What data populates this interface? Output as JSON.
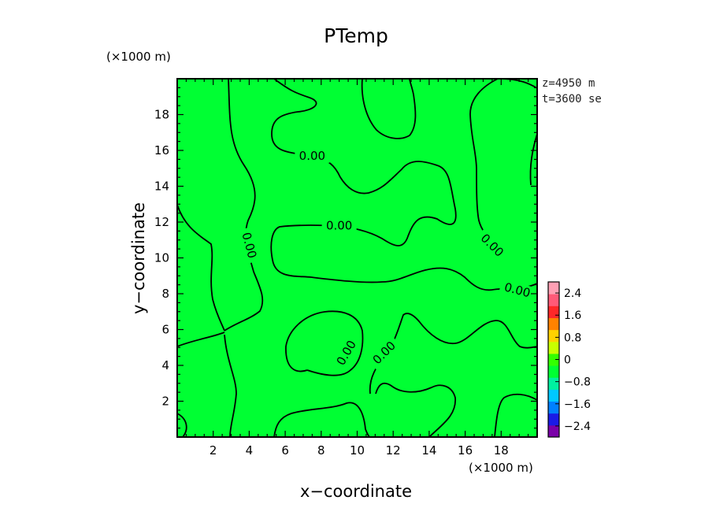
{
  "chart_data": {
    "type": "contour",
    "title": "PTemp",
    "xlabel": "x−coordinate",
    "ylabel": "y−coordinate",
    "x_unit": "(×1000 m)",
    "y_unit": "(×1000 m)",
    "xlim": [
      0,
      20
    ],
    "ylim": [
      0,
      20
    ],
    "x_ticks": [
      2,
      4,
      6,
      8,
      10,
      12,
      14,
      16,
      18
    ],
    "y_ticks": [
      2,
      4,
      6,
      8,
      10,
      12,
      14,
      16,
      18
    ],
    "annotations": [
      "z=4950 m",
      "t=3600 se"
    ],
    "field_fill_color": "#00ff33",
    "contour_labels": [
      {
        "text": "0.00",
        "x": 7.5,
        "y": 15.7,
        "angle": 0
      },
      {
        "text": "0.00",
        "x": 9.0,
        "y": 11.8,
        "angle": 0
      },
      {
        "text": "0.00",
        "x": 4.0,
        "y": 10.7,
        "angle": 75
      },
      {
        "text": "0.00",
        "x": 17.5,
        "y": 10.7,
        "angle": 45
      },
      {
        "text": "0.00",
        "x": 18.9,
        "y": 8.2,
        "angle": 15
      },
      {
        "text": "0.00",
        "x": 9.4,
        "y": 4.7,
        "angle": -60
      },
      {
        "text": "0.00",
        "x": 11.5,
        "y": 4.7,
        "angle": -45
      }
    ],
    "colorbar": {
      "ticks": [
        "2.4",
        "1.6",
        "0.8",
        "0",
        "−0.8",
        "−1.6",
        "−2.4"
      ],
      "tick_values": [
        2.4,
        1.6,
        0.8,
        0,
        -0.8,
        -1.6,
        -2.4
      ],
      "range": [
        -2.8,
        2.8
      ],
      "colors": [
        "#7a00a8",
        "#1a1ae6",
        "#0080ff",
        "#00c8ff",
        "#00f0a0",
        "#00ff33",
        "#33ff00",
        "#c8ff00",
        "#ffd200",
        "#ff8200",
        "#ff2828",
        "#ff5a78",
        "#ffa0b4"
      ]
    }
  }
}
